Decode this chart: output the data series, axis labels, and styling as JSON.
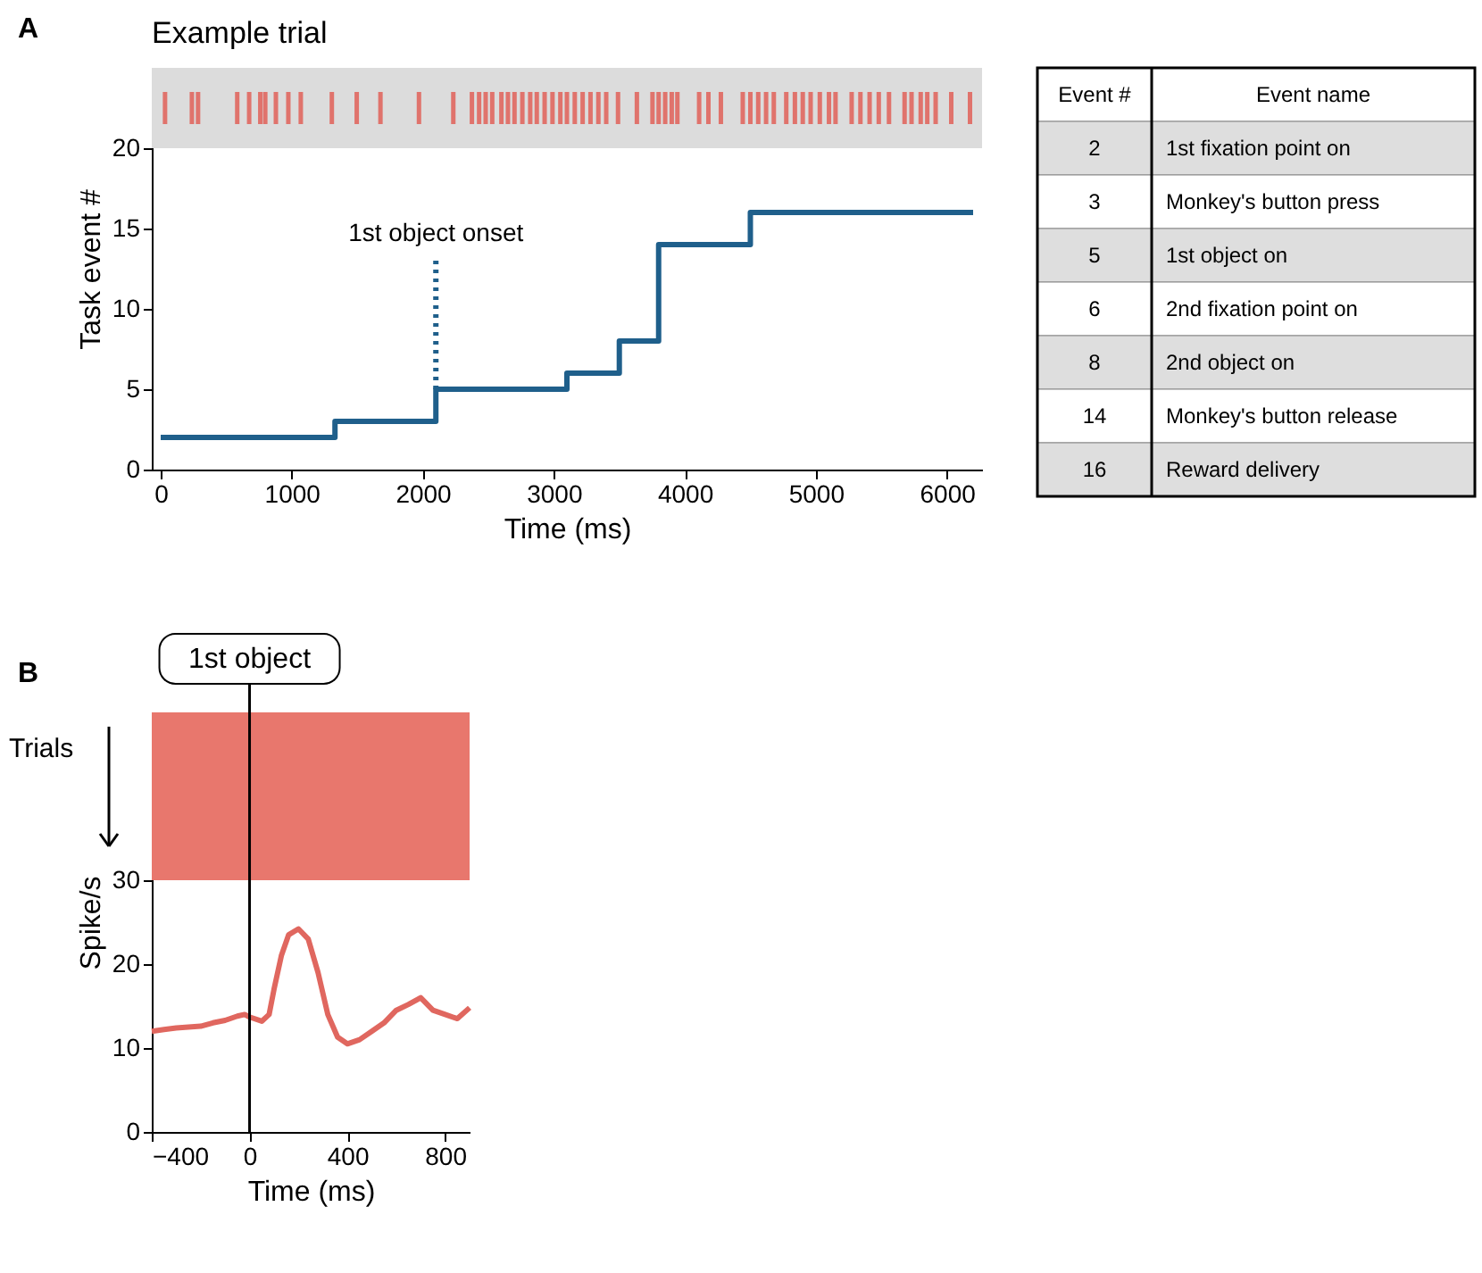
{
  "chart_data": [
    {
      "type": "step",
      "title": "Example trial",
      "xlabel": "Time (ms)",
      "ylabel": "Task event #",
      "annotations": [
        "A"
      ],
      "xlim": [
        0,
        6200
      ],
      "xticks": [
        0,
        1000,
        2000,
        3000,
        4000,
        5000,
        6000
      ],
      "ylim": [
        0,
        25
      ],
      "yticks": [
        0,
        5,
        10,
        15,
        20
      ],
      "grid": false,
      "bands": [
        {
          "axis": "y",
          "from": 20,
          "to": 25,
          "color": "#dcdcdc"
        }
      ],
      "series": [
        {
          "color": "#1f5f8b",
          "x": [
            0,
            1330,
            2100,
            3100,
            3500,
            3800,
            4500,
            6200
          ],
          "values": [
            2,
            3,
            5,
            6,
            8,
            14,
            16,
            16
          ]
        },
        {
          "type": "line",
          "name": "1st object onset",
          "line_style": "dotted",
          "color": "#1f5f8b",
          "x": [
            2100,
            2100
          ],
          "values": [
            5,
            13
          ]
        },
        {
          "type": "bar",
          "color": "#e0675f",
          "base": [
            21.5,
            21.5,
            21.5,
            21.5,
            21.5,
            21.5,
            21.5,
            21.5,
            21.5,
            21.5,
            21.5,
            21.5,
            21.5,
            21.5,
            21.5,
            21.5,
            21.5,
            21.5,
            21.5,
            21.5,
            21.5,
            21.5,
            21.5,
            21.5,
            21.5,
            21.5,
            21.5,
            21.5,
            21.5,
            21.5,
            21.5,
            21.5,
            21.5,
            21.5,
            21.5,
            21.5,
            21.5,
            21.5,
            21.5,
            21.5,
            21.5,
            21.5,
            21.5,
            21.5,
            21.5,
            21.5,
            21.5,
            21.5,
            21.5,
            21.5,
            21.5,
            21.5,
            21.5,
            21.5,
            21.5,
            21.5,
            21.5,
            21.5,
            21.5,
            21.5,
            21.5,
            21.5,
            21.5,
            21.5,
            21.5,
            21.5,
            21.5,
            21.5
          ],
          "x": [
            33,
            238,
            285,
            584,
            675,
            760,
            798,
            879,
            974,
            1069,
            1306,
            1496,
            1677,
            1971,
            2233,
            2375,
            2430,
            2480,
            2530,
            2600,
            2650,
            2700,
            2760,
            2820,
            2870,
            2930,
            2990,
            3050,
            3100,
            3160,
            3220,
            3280,
            3340,
            3400,
            3490,
            3634,
            3753,
            3800,
            3850,
            3900,
            3943,
            4109,
            4180,
            4275,
            4442,
            4500,
            4560,
            4620,
            4679,
            4774,
            4840,
            4900,
            4960,
            5030,
            5100,
            5150,
            5273,
            5340,
            5410,
            5480,
            5558,
            5677,
            5730,
            5800,
            5850,
            5914,
            6033,
            6176
          ],
          "values": [
            2,
            2,
            2,
            2,
            2,
            2,
            2,
            2,
            2,
            2,
            2,
            2,
            2,
            2,
            2,
            2,
            2,
            2,
            2,
            2,
            2,
            2,
            2,
            2,
            2,
            2,
            2,
            2,
            2,
            2,
            2,
            2,
            2,
            2,
            2,
            2,
            2,
            2,
            2,
            2,
            2,
            2,
            2,
            2,
            2,
            2,
            2,
            2,
            2,
            2,
            2,
            2,
            2,
            2,
            2,
            2,
            2,
            2,
            2,
            2,
            2,
            2,
            2,
            2,
            2,
            2,
            2,
            2
          ]
        }
      ]
    },
    {
      "type": "other",
      "annotations": [
        "Event #",
        "Event name",
        "2",
        "1st fixation point on",
        "3",
        "Monkey's button press",
        "5",
        "1st object on",
        "6",
        "2nd fixation point on",
        "8",
        "2nd object on",
        "14",
        "Monkey's button release",
        "16",
        "Reward delivery"
      ]
    },
    {
      "type": "line",
      "xlabel": "Time (ms)",
      "ylabel": "Spike/s",
      "annotations": [
        "B",
        "Trials"
      ],
      "xlim": [
        -400,
        900
      ],
      "xticks": [
        -400,
        0,
        400,
        800
      ],
      "ylim": [
        0,
        50
      ],
      "yticks": [
        0,
        10,
        20,
        30
      ],
      "grid": false,
      "bands": [
        {
          "axis": "y",
          "from": 30,
          "to": 50,
          "color": "#e8776d"
        }
      ],
      "ref_lines": [
        {
          "axis": "x",
          "value": 0,
          "label": "1st object",
          "color": "#000000"
        }
      ],
      "series": [
        {
          "color": "#e0675f",
          "x": [
            -400,
            -350,
            -300,
            -250,
            -200,
            -150,
            -100,
            -50,
            -20,
            0,
            50,
            80,
            100,
            130,
            160,
            200,
            240,
            280,
            320,
            360,
            400,
            450,
            500,
            550,
            600,
            650,
            700,
            750,
            800,
            850,
            900
          ],
          "values": [
            12,
            12.2,
            12.4,
            12.5,
            12.6,
            13,
            13.3,
            13.8,
            14,
            13.7,
            13.2,
            14,
            17,
            21,
            23.5,
            24.2,
            23,
            19,
            14,
            11.3,
            10.5,
            11,
            12,
            13,
            14.5,
            15.2,
            16,
            14.5,
            14,
            13.5,
            14.8
          ]
        }
      ]
    }
  ]
}
